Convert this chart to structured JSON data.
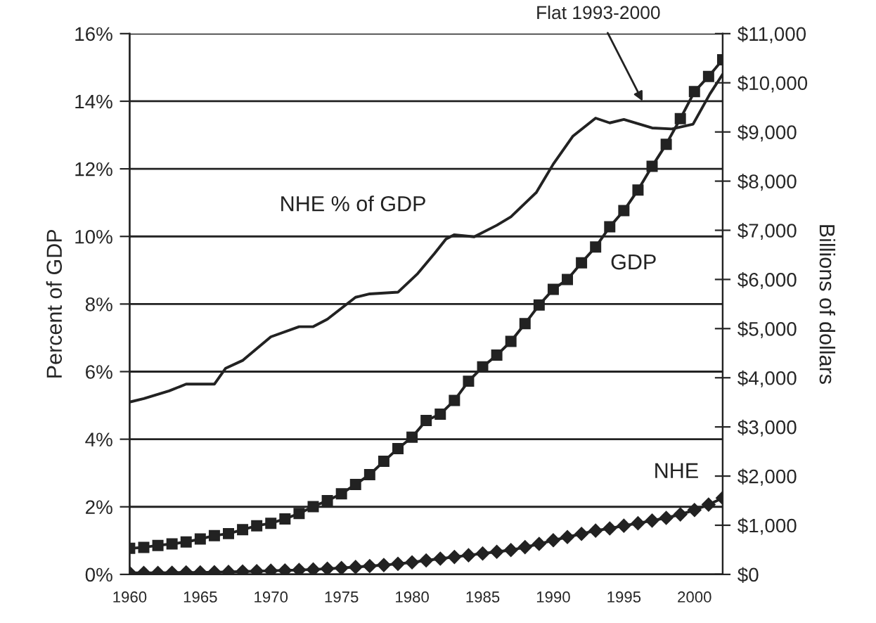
{
  "chart_data": {
    "type": "line",
    "ylabel": "Percent of GDP",
    "y2label": "Billions of dollars",
    "xlim": [
      1960,
      2002
    ],
    "xticks": [
      1960,
      1965,
      1970,
      1975,
      1980,
      1985,
      1990,
      1995,
      2000
    ],
    "ylim": [
      0,
      16
    ],
    "yticks": [
      {
        "value": 0,
        "label": "0%"
      },
      {
        "value": 2,
        "label": "2%"
      },
      {
        "value": 4,
        "label": "4%"
      },
      {
        "value": 6,
        "label": "6%"
      },
      {
        "value": 8,
        "label": "8%"
      },
      {
        "value": 10,
        "label": "10%"
      },
      {
        "value": 12,
        "label": "12%"
      },
      {
        "value": 14,
        "label": "14%"
      },
      {
        "value": 16,
        "label": "16%"
      }
    ],
    "y2lim": [
      0,
      11000
    ],
    "y2ticks": [
      {
        "value": 0,
        "label": "$0"
      },
      {
        "value": 1000,
        "label": "$1,000"
      },
      {
        "value": 2000,
        "label": "$2,000"
      },
      {
        "value": 3000,
        "label": "$3,000"
      },
      {
        "value": 4000,
        "label": "$4,000"
      },
      {
        "value": 5000,
        "label": "$5,000"
      },
      {
        "value": 6000,
        "label": "$6,000"
      },
      {
        "value": 7000,
        "label": "$7,000"
      },
      {
        "value": 8000,
        "label": "$8,000"
      },
      {
        "value": 9000,
        "label": "$9,000"
      },
      {
        "value": 10000,
        "label": "$10,000"
      },
      {
        "value": 11000,
        "label": "$11,000"
      }
    ],
    "grid": "y",
    "legend": false,
    "annotations": [
      "Flat 1993-2000"
    ],
    "series": [
      {
        "name": "NHE % of GDP",
        "color": "#222222",
        "marker": "none",
        "x": [
          1960,
          1961,
          1962.8,
          1964,
          1966,
          1966.8,
          1968,
          1970,
          1972,
          1973,
          1974,
          1976,
          1977,
          1979,
          1980.4,
          1981.6,
          1982.4,
          1983,
          1984.4,
          1986,
          1987,
          1988.8,
          1990,
          1991.4,
          1993,
          1994,
          1995,
          1997,
          1998.4,
          1999.9,
          2001.1,
          2002
        ],
        "values": [
          5.1,
          5.2,
          5.43,
          5.63,
          5.63,
          6.1,
          6.33,
          7.03,
          7.33,
          7.33,
          7.55,
          8.2,
          8.3,
          8.35,
          8.9,
          9.5,
          9.92,
          10.05,
          9.99,
          10.33,
          10.58,
          11.3,
          12.14,
          12.97,
          13.5,
          13.36,
          13.46,
          13.21,
          13.18,
          13.32,
          14.22,
          14.8
        ]
      },
      {
        "name": "GDP",
        "color": "#222222",
        "marker": "square",
        "axis": "y2",
        "x": [
          1960,
          1961,
          1962,
          1963,
          1964,
          1965,
          1966,
          1967,
          1968,
          1969,
          1970,
          1971,
          1972,
          1973,
          1974,
          1975,
          1976,
          1977,
          1978,
          1979,
          1980,
          1981,
          1982,
          1983,
          1984,
          1985,
          1986,
          1987,
          1988,
          1989,
          1990,
          1991,
          1992,
          1993,
          1994,
          1995,
          1996,
          1997,
          1998,
          1999,
          2000,
          2001,
          2002
        ],
        "values": [
          530,
          550,
          590,
          620,
          660,
          720,
          790,
          830,
          910,
          990,
          1040,
          1130,
          1240,
          1380,
          1500,
          1640,
          1830,
          2030,
          2300,
          2560,
          2790,
          3130,
          3260,
          3540,
          3930,
          4220,
          4460,
          4740,
          5100,
          5480,
          5800,
          6000,
          6340,
          6660,
          7070,
          7400,
          7820,
          8300,
          8750,
          9270,
          9820,
          10130,
          10470
        ]
      },
      {
        "name": "NHE",
        "color": "#222222",
        "marker": "diamond",
        "axis": "y2",
        "x": [
          1960,
          1961,
          1962,
          1963,
          1964,
          1965,
          1966,
          1967,
          1968,
          1969,
          1970,
          1971,
          1972,
          1973,
          1974,
          1975,
          1976,
          1977,
          1978,
          1979,
          1980,
          1981,
          1982,
          1983,
          1984,
          1985,
          1986,
          1987,
          1988,
          1989,
          1990,
          1991,
          1992,
          1993,
          1994,
          1995,
          1996,
          1997,
          1998,
          1999,
          2000,
          2001,
          2002
        ],
        "values": [
          30,
          30,
          30,
          35,
          40,
          40,
          45,
          50,
          60,
          65,
          75,
          80,
          90,
          100,
          115,
          130,
          150,
          170,
          190,
          215,
          245,
          285,
          320,
          355,
          390,
          425,
          460,
          495,
          555,
          620,
          695,
          760,
          825,
          890,
          935,
          990,
          1040,
          1095,
          1150,
          1220,
          1310,
          1420,
          1555
        ]
      }
    ]
  }
}
